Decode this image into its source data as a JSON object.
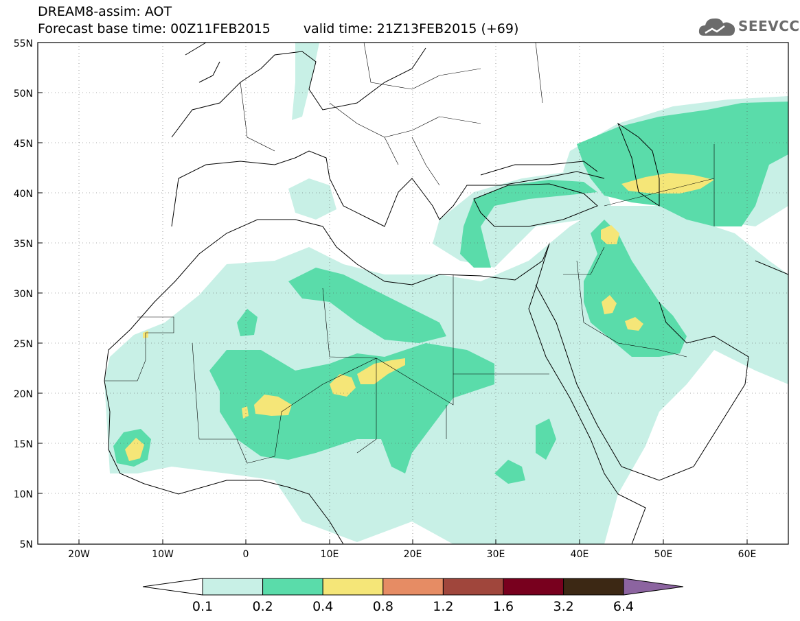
{
  "header": {
    "title": "DREAM8-assim: AOT",
    "base_time": "Forecast base time: 00Z11FEB2015",
    "valid_time": "valid time: 21Z13FEB2015 (+69)"
  },
  "logo": {
    "text": "SEEVCCC",
    "icon": "cloud-icon",
    "color": "#6b6b6b"
  },
  "map": {
    "lat_labels": [
      "55N",
      "50N",
      "45N",
      "40N",
      "35N",
      "30N",
      "25N",
      "20N",
      "15N",
      "10N",
      "5N"
    ],
    "lon_labels": [
      "20W",
      "10W",
      "0",
      "10E",
      "20E",
      "30E",
      "40E",
      "50E",
      "60E"
    ]
  },
  "colorbar": {
    "labels": [
      "0.1",
      "0.2",
      "0.4",
      "0.8",
      "1.2",
      "1.6",
      "3.2",
      "6.4"
    ],
    "colors": [
      "#c8f0e6",
      "#5adcaa",
      "#f5e678",
      "#e68c64",
      "#a0463c",
      "#78001e",
      "#3c2814",
      "#8c64a0"
    ]
  }
}
